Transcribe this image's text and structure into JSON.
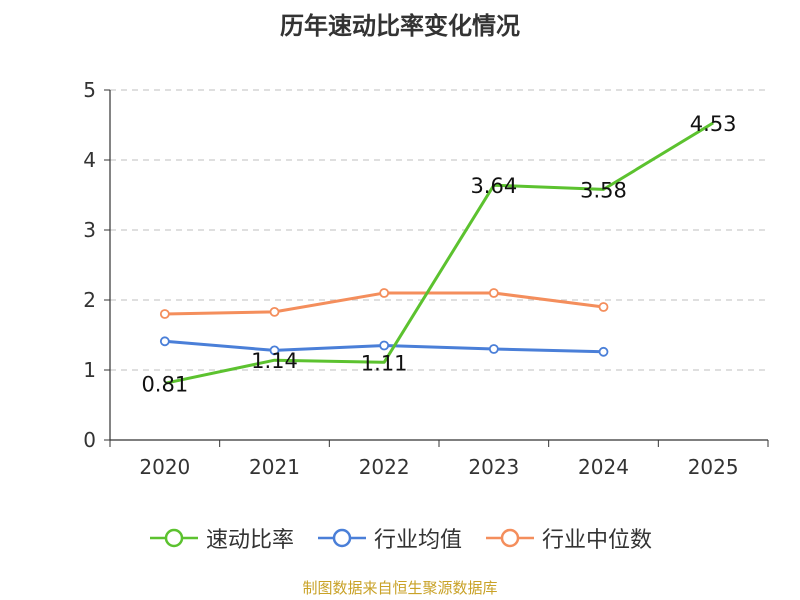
{
  "chart_data": {
    "type": "line",
    "title": "历年速动比率变化情况",
    "categories": [
      "2020",
      "2021",
      "2022",
      "2023",
      "2024",
      "2025"
    ],
    "ylim": [
      0,
      5
    ],
    "yticks": [
      "0",
      "1",
      "2",
      "3",
      "4",
      "5"
    ],
    "grid": true,
    "legend_position": "bottom",
    "series": [
      {
        "name": "速动比率",
        "color": "#5cc22f",
        "values": [
          0.81,
          1.14,
          1.11,
          3.64,
          3.58,
          4.53
        ],
        "labels": [
          "0.81",
          "1.14",
          "1.11",
          "3.64",
          "3.58",
          "4.53"
        ]
      },
      {
        "name": "行业均值",
        "color": "#4a7fd8",
        "values": [
          1.41,
          1.28,
          1.35,
          1.3,
          1.26,
          null
        ]
      },
      {
        "name": "行业中位数",
        "color": "#f48e5c",
        "values": [
          1.8,
          1.83,
          2.1,
          2.1,
          1.9,
          null
        ]
      }
    ]
  },
  "source": "制图数据来自恒生聚源数据库"
}
